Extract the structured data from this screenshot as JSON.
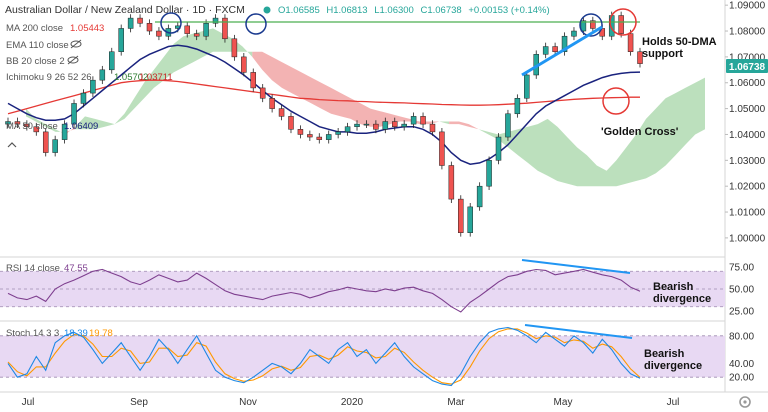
{
  "header": {
    "title": "Australian Dollar / New Zealand Dollar · 1D · FXCM",
    "ohlc": {
      "open": "O1.06585",
      "high": "H1.06813",
      "low": "L1.06300",
      "close": "C1.06738",
      "change": "+0.00153 (+0.14%)"
    }
  },
  "legend": {
    "ma200": {
      "label": "MA 200 close",
      "value": "1.05443"
    },
    "ema110": {
      "label": "EMA 110 close"
    },
    "bb20": {
      "label": "BB 20 close 2"
    },
    "ichimoku": {
      "label": "Ichimoku 9 26 52 26",
      "value1": "1.05702",
      "value2": "1.03711"
    },
    "ma50": {
      "label": "MA 50 close",
      "value": "1.06409"
    },
    "colors": {
      "price_up": "#26a69a",
      "price_down": "#ef5350",
      "ma200": "#e53935",
      "ma50": "#1a237e",
      "cloud_bull": "#a5d6a7",
      "cloud_bear": "#ef9a9a"
    }
  },
  "rsi": {
    "label": "RSI 14 close",
    "value": "47.55",
    "color": "#7e3f8f"
  },
  "stoch": {
    "label": "Stoch 14 3 3",
    "k": "18.39",
    "d": "19.78",
    "k_color": "#1e88e5",
    "d_color": "#ff9800"
  },
  "annotations": {
    "holds_line1": "Holds 50-DMA",
    "holds_line2": "support",
    "golden_cross": "'Golden Cross'",
    "bearish1_line1": "Bearish",
    "bearish1_line2": "divergence",
    "bearish2_line1": "Bearish",
    "bearish2_line2": "divergence"
  },
  "price_badge": "1.06738",
  "chart_data": {
    "type": "line",
    "x_labels": [
      "Jul",
      "Sep",
      "Nov",
      "2020",
      "Mar",
      "May",
      "Jul"
    ],
    "price_axis": {
      "ticks": [
        "1.09000",
        "1.08000",
        "1.07000",
        "1.06000",
        "1.05000",
        "1.04000",
        "1.03000",
        "1.02000",
        "1.01000",
        "1.00000"
      ],
      "ylim": [
        0.993,
        1.092
      ]
    },
    "rsi_axis": {
      "ticks": [
        "75.00",
        "50.00",
        "25.00"
      ],
      "ylim": [
        15,
        85
      ],
      "band": [
        30,
        70
      ]
    },
    "stoch_axis": {
      "ticks": [
        "80.00",
        "40.00",
        "20.00"
      ],
      "ylim": [
        0,
        100
      ],
      "band": [
        20,
        80
      ]
    },
    "price_close": [
      1.045,
      1.044,
      1.043,
      1.041,
      1.033,
      1.038,
      1.044,
      1.052,
      1.056,
      1.061,
      1.065,
      1.072,
      1.081,
      1.085,
      1.083,
      1.08,
      1.078,
      1.081,
      1.082,
      1.079,
      1.078,
      1.083,
      1.085,
      1.077,
      1.07,
      1.064,
      1.058,
      1.054,
      1.05,
      1.047,
      1.042,
      1.04,
      1.039,
      1.038,
      1.04,
      1.041,
      1.043,
      1.044,
      1.044,
      1.042,
      1.045,
      1.043,
      1.044,
      1.047,
      1.044,
      1.041,
      1.028,
      1.015,
      1.002,
      1.012,
      1.02,
      1.03,
      1.039,
      1.048,
      1.054,
      1.063,
      1.071,
      1.074,
      1.072,
      1.078,
      1.08,
      1.084,
      1.081,
      1.078,
      1.086,
      1.079,
      1.072,
      1.0674
    ],
    "ma200": [
      1.048,
      1.049,
      1.05,
      1.051,
      1.052,
      1.053,
      1.054,
      1.055,
      1.056,
      1.057,
      1.058,
      1.059,
      1.06,
      1.0605,
      1.0608,
      1.061,
      1.061,
      1.0608,
      1.0605,
      1.06,
      1.0595,
      1.059,
      1.0585,
      1.058,
      1.0575,
      1.057,
      1.0565,
      1.056,
      1.0555,
      1.055,
      1.0545,
      1.054,
      1.0538,
      1.0535,
      1.0533,
      1.0531,
      1.053,
      1.0528,
      1.0527,
      1.0525,
      1.0524,
      1.0523,
      1.0522,
      1.052,
      1.0519,
      1.0518,
      1.0516,
      1.0515,
      1.0514,
      1.0513,
      1.0513,
      1.0514,
      1.0515,
      1.0517,
      1.0519,
      1.0521,
      1.0524,
      1.0527,
      1.053,
      1.0533,
      1.0536,
      1.0538,
      1.054,
      1.0541,
      1.0542,
      1.0543,
      1.0544,
      1.0544
    ],
    "ma50": [
      1.052,
      1.05,
      1.048,
      1.0465,
      1.0455,
      1.0455,
      1.046,
      1.048,
      1.051,
      1.054,
      1.057,
      1.06,
      1.063,
      1.066,
      1.069,
      1.071,
      1.0725,
      1.074,
      1.0745,
      1.074,
      1.073,
      1.0715,
      1.07,
      1.068,
      1.0655,
      1.063,
      1.06,
      1.057,
      1.054,
      1.0515,
      1.049,
      1.047,
      1.045,
      1.043,
      1.042,
      1.041,
      1.041,
      1.0405,
      1.0405,
      1.041,
      1.042,
      1.0425,
      1.043,
      1.043,
      1.042,
      1.04,
      1.037,
      1.033,
      1.03,
      1.0285,
      1.029,
      1.0305,
      1.033,
      1.036,
      1.04,
      1.044,
      1.048,
      1.051,
      1.053,
      1.055,
      1.057,
      1.059,
      1.0605,
      1.062,
      1.063,
      1.0636,
      1.064,
      1.0641
    ],
    "cloud_a": [
      1.05,
      1.046,
      1.044,
      1.042,
      1.04,
      1.043,
      1.047,
      1.046,
      1.045,
      1.044,
      1.048,
      1.054,
      1.06,
      1.065,
      1.07,
      1.075,
      1.078,
      1.079,
      1.08,
      1.081,
      1.079,
      1.077,
      1.074,
      1.07,
      1.065,
      1.061,
      1.058,
      1.056,
      1.054,
      1.052,
      1.05,
      1.048,
      1.047,
      1.046,
      1.044,
      1.043,
      1.043,
      1.044,
      1.045,
      1.045,
      1.044,
      1.044,
      1.045,
      1.044,
      1.044,
      1.043,
      1.042,
      1.041,
      1.04,
      1.041,
      1.042,
      1.043,
      1.044,
      1.046,
      1.043,
      1.039,
      1.035,
      1.032,
      1.028,
      1.026,
      1.03,
      1.035,
      1.04,
      1.046,
      1.05,
      1.054,
      1.056,
      1.058,
      1.06,
      1.062
    ],
    "cloud_b": [
      1.047,
      1.045,
      1.043,
      1.041,
      1.041,
      1.042,
      1.042,
      1.042,
      1.043,
      1.044,
      1.046,
      1.05,
      1.054,
      1.058,
      1.061,
      1.064,
      1.066,
      1.068,
      1.07,
      1.072,
      1.072,
      1.072,
      1.072,
      1.072,
      1.072,
      1.07,
      1.068,
      1.066,
      1.064,
      1.062,
      1.06,
      1.058,
      1.056,
      1.054,
      1.052,
      1.05,
      1.049,
      1.048,
      1.047,
      1.046,
      1.045,
      1.045,
      1.045,
      1.045,
      1.045,
      1.044,
      1.042,
      1.04,
      1.038,
      1.035,
      1.032,
      1.029,
      1.026,
      1.024,
      1.022,
      1.021,
      1.02,
      1.02,
      1.02,
      1.02,
      1.02,
      1.021,
      1.022,
      1.023,
      1.025,
      1.028,
      1.032,
      1.036,
      1.04,
      1.042
    ],
    "rsi": [
      45,
      40,
      38,
      42,
      36,
      50,
      56,
      60,
      65,
      70,
      72,
      68,
      64,
      58,
      55,
      60,
      66,
      62,
      58,
      60,
      68,
      62,
      55,
      48,
      44,
      42,
      40,
      38,
      42,
      44,
      46,
      44,
      40,
      43,
      47,
      49,
      52,
      50,
      48,
      47,
      50,
      48,
      51,
      52,
      48,
      45,
      38,
      30,
      24,
      35,
      42,
      50,
      58,
      64,
      66,
      70,
      72,
      71,
      66,
      68,
      70,
      72,
      69,
      66,
      64,
      60,
      52,
      47.55
    ],
    "stoch_k": [
      40,
      20,
      25,
      50,
      30,
      70,
      80,
      85,
      78,
      60,
      40,
      55,
      70,
      50,
      30,
      50,
      75,
      60,
      40,
      60,
      80,
      55,
      30,
      20,
      15,
      12,
      20,
      30,
      40,
      35,
      25,
      40,
      60,
      50,
      40,
      60,
      70,
      50,
      60,
      40,
      55,
      70,
      50,
      35,
      25,
      15,
      10,
      8,
      25,
      50,
      70,
      85,
      90,
      92,
      88,
      80,
      70,
      85,
      75,
      65,
      80,
      70,
      55,
      75,
      60,
      40,
      25,
      18.39
    ],
    "stoch_d": [
      42,
      28,
      22,
      35,
      35,
      55,
      72,
      82,
      80,
      68,
      50,
      50,
      62,
      58,
      40,
      42,
      62,
      62,
      50,
      52,
      70,
      65,
      42,
      25,
      18,
      14,
      16,
      22,
      32,
      36,
      30,
      34,
      50,
      52,
      46,
      52,
      64,
      58,
      56,
      48,
      50,
      62,
      56,
      42,
      30,
      20,
      12,
      10,
      16,
      35,
      58,
      76,
      86,
      90,
      90,
      84,
      76,
      80,
      78,
      70,
      74,
      72,
      62,
      68,
      64,
      50,
      32,
      19.78
    ]
  }
}
